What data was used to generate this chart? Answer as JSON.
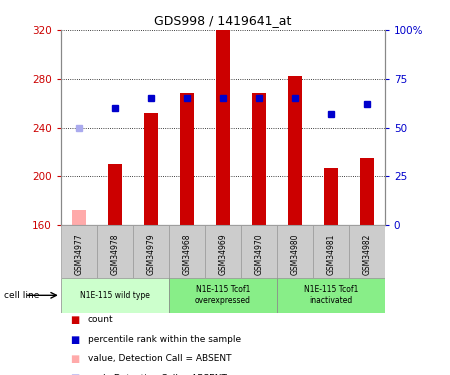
{
  "title": "GDS998 / 1419641_at",
  "samples": [
    "GSM34977",
    "GSM34978",
    "GSM34979",
    "GSM34968",
    "GSM34969",
    "GSM34970",
    "GSM34980",
    "GSM34981",
    "GSM34982"
  ],
  "count_values": [
    172,
    210,
    252,
    268,
    320,
    268,
    282,
    207,
    215
  ],
  "count_absent": [
    true,
    false,
    false,
    false,
    false,
    false,
    false,
    false,
    false
  ],
  "percentile_values": [
    50,
    60,
    65,
    65,
    65,
    65,
    65,
    57,
    62
  ],
  "percentile_absent": [
    true,
    false,
    false,
    false,
    false,
    false,
    false,
    false,
    false
  ],
  "ylim_left": [
    160,
    320
  ],
  "ylim_right": [
    0,
    100
  ],
  "yticks_left": [
    160,
    200,
    240,
    280,
    320
  ],
  "yticks_right": [
    0,
    25,
    50,
    75,
    100
  ],
  "bar_color_normal": "#cc0000",
  "bar_color_absent": "#ffaaaa",
  "dot_color_normal": "#0000cc",
  "dot_color_absent": "#aaaaee",
  "grid_color": "black",
  "groups": [
    {
      "label": "N1E-115 wild type",
      "indices": [
        0,
        1,
        2
      ],
      "color": "#ccffcc"
    },
    {
      "label": "N1E-115 Tcof1\noverexpressed",
      "indices": [
        3,
        4,
        5
      ],
      "color": "#aaffaa"
    },
    {
      "label": "N1E-115 Tcof1\ninactivated",
      "indices": [
        6,
        7,
        8
      ],
      "color": "#aaffaa"
    }
  ],
  "group_bounds": [
    0,
    3,
    6,
    9
  ],
  "legend_items": [
    {
      "label": "count",
      "color": "#cc0000"
    },
    {
      "label": "percentile rank within the sample",
      "color": "#0000cc"
    },
    {
      "label": "value, Detection Call = ABSENT",
      "color": "#ffaaaa"
    },
    {
      "label": "rank, Detection Call = ABSENT",
      "color": "#aaaaee"
    }
  ],
  "cell_line_label": "cell line",
  "bar_width": 0.4,
  "dot_size": 5,
  "background_color": "#ffffff",
  "plot_bg_color": "#ffffff",
  "tick_label_color_left": "#cc0000",
  "tick_label_color_right": "#0000cc",
  "sample_box_color": "#cccccc",
  "group_box_color_1": "#ccffcc",
  "group_box_color_2": "#88ee88"
}
